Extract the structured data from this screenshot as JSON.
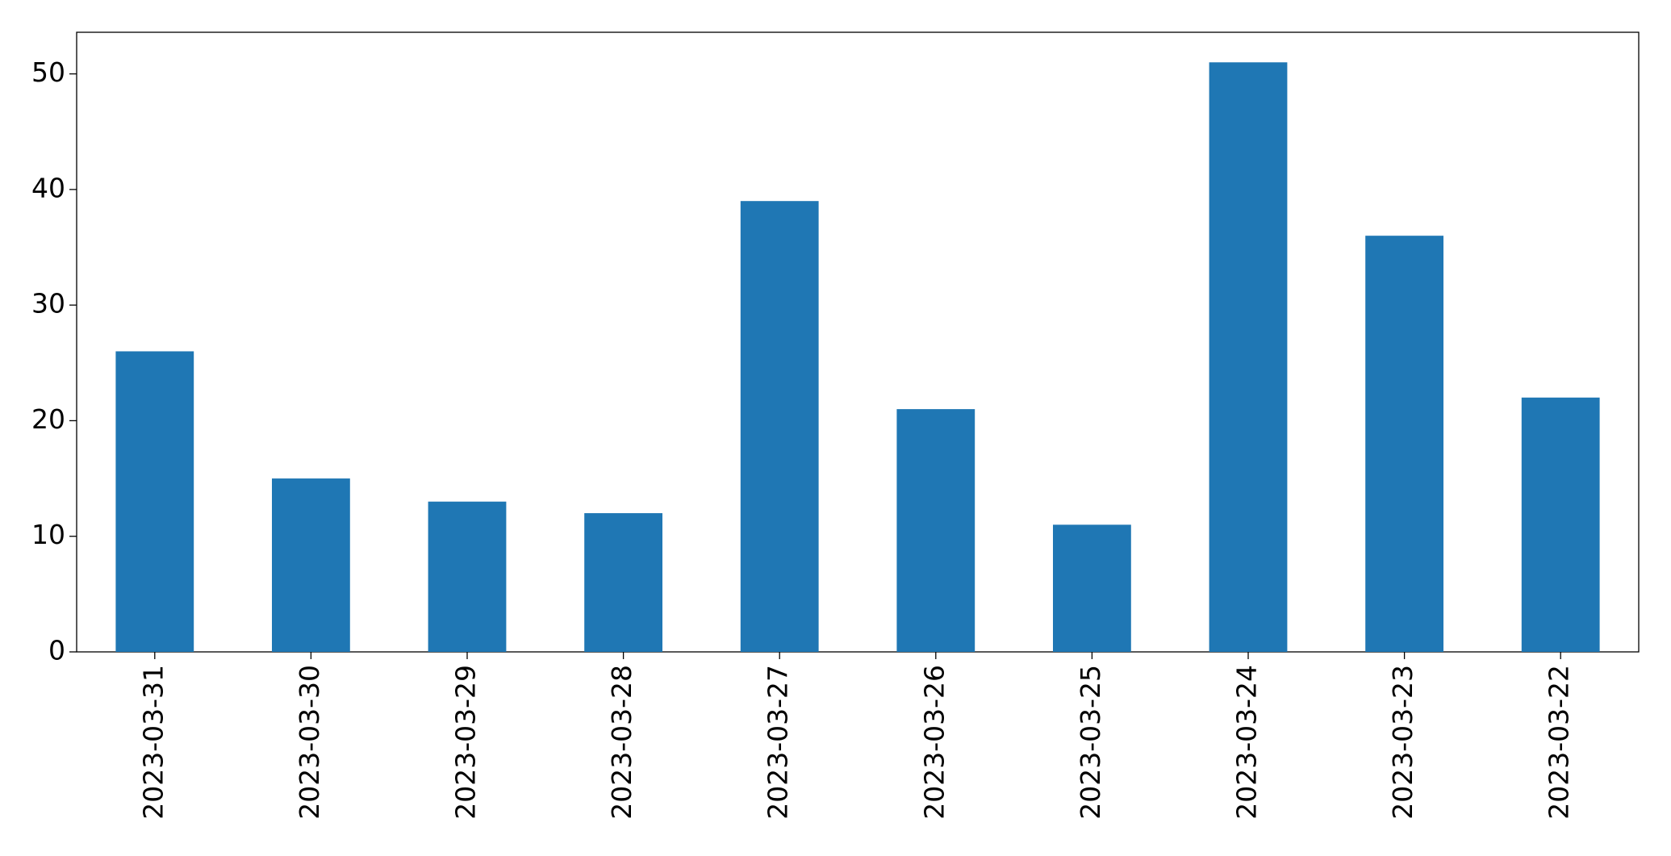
{
  "chart_data": {
    "type": "bar",
    "categories": [
      "2023-03-31",
      "2023-03-30",
      "2023-03-29",
      "2023-03-28",
      "2023-03-27",
      "2023-03-26",
      "2023-03-25",
      "2023-03-24",
      "2023-03-23",
      "2023-03-22"
    ],
    "values": [
      26,
      15,
      13,
      12,
      39,
      21,
      11,
      51,
      36,
      22
    ],
    "color": "#1f77b4",
    "ylim": [
      0,
      53.6
    ],
    "yticks": [
      0,
      10,
      20,
      30,
      40,
      50
    ],
    "grid": false
  }
}
